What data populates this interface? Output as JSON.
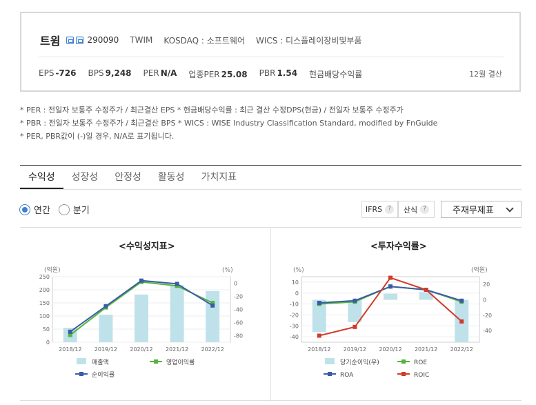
{
  "company": {
    "name": "트윔",
    "code": "290090",
    "ticker": "TWIM",
    "market": "KOSDAQ : 소프트웨어",
    "wics": "WICS : 디스플레이장비및부품",
    "fiscal": "12월 결산"
  },
  "metrics": [
    {
      "label": "EPS",
      "value": "-726"
    },
    {
      "label": "BPS",
      "value": "9,248"
    },
    {
      "label": "PER",
      "value": "N/A"
    },
    {
      "label": "업종PER",
      "value": "25.08"
    },
    {
      "label": "PBR",
      "value": "1.54"
    },
    {
      "label": "현금배당수익률",
      "value": ""
    }
  ],
  "notes": [
    "* PER : 전일자 보통주 수정주가 / 최근결산 EPS * 현금배당수익률 : 최근 결산 수정DPS(현금) / 전일자 보통주 수정주가",
    "* PBR : 전일자 보통주 수정주가 / 최근결산 BPS * WICS : WISE Industry Classification Standard, modified by FnGuide",
    "* PER, PBR값이 (-)일 경우, N/A로 표기됩니다."
  ],
  "tabs": [
    "수익성",
    "성장성",
    "안정성",
    "활동성",
    "가치지표"
  ],
  "period": {
    "annual": "연간",
    "quarter": "분기"
  },
  "chips": {
    "ifrs": "IFRS",
    "calc": "산식",
    "help": "?"
  },
  "select": {
    "value": "주재무제표"
  },
  "chart_data": [
    {
      "type": "bar",
      "title": "<수익성지표>",
      "left_axis_label": "(억원)",
      "right_axis_label": "(%)",
      "categories": [
        "2018/12",
        "2019/12",
        "2020/12",
        "2021/12",
        "2022/12"
      ],
      "left_ticks": [
        "250",
        "200",
        "150",
        "100",
        "50",
        "0"
      ],
      "right_ticks": [
        "0",
        "-20",
        "-40",
        "-60",
        "-80"
      ],
      "ylim_left": [
        0,
        250
      ],
      "ylim_right": [
        -90,
        10
      ],
      "series": [
        {
          "name": "매출액",
          "kind": "bar",
          "axis": "left",
          "color": "#bfe2ea",
          "values": [
            55,
            105,
            182,
            218,
            195
          ]
        },
        {
          "name": "영업이익률",
          "kind": "line",
          "axis": "right",
          "color": "#55b53b",
          "values": [
            -79,
            -37,
            2,
            -4,
            -30
          ]
        },
        {
          "name": "순이익률",
          "kind": "line",
          "axis": "right",
          "color": "#3a5ca8",
          "values": [
            -74,
            -35,
            4,
            -1,
            -34
          ]
        }
      ]
    },
    {
      "type": "bar",
      "title": "<투자수익률>",
      "left_axis_label": "(%)",
      "right_axis_label": "(억원)",
      "categories": [
        "2018/12",
        "2019/12",
        "2020/12",
        "2021/12",
        "2022/12"
      ],
      "left_ticks": [
        "10",
        "0",
        "-10",
        "-20",
        "-30",
        "-40"
      ],
      "right_ticks": [
        "20",
        "0",
        "-20",
        "-40"
      ],
      "ylim_left": [
        -45,
        15
      ],
      "ylim_right": [
        -55,
        30
      ],
      "series": [
        {
          "name": "당기순이익(우)",
          "kind": "bar",
          "axis": "right",
          "color": "#bfe2ea",
          "values": [
            -42,
            -29,
            8,
            10,
            -55
          ]
        },
        {
          "name": "ROE",
          "kind": "line",
          "axis": "left",
          "color": "#55b53b",
          "values": [
            -10,
            -8,
            6,
            3,
            -8
          ]
        },
        {
          "name": "ROA",
          "kind": "line",
          "axis": "left",
          "color": "#3a5ca8",
          "values": [
            -9,
            -7,
            6,
            3,
            -7
          ]
        },
        {
          "name": "ROIC",
          "kind": "line",
          "axis": "left",
          "color": "#d23a2a",
          "values": [
            -39,
            -31,
            14,
            3,
            -26
          ]
        }
      ]
    }
  ]
}
